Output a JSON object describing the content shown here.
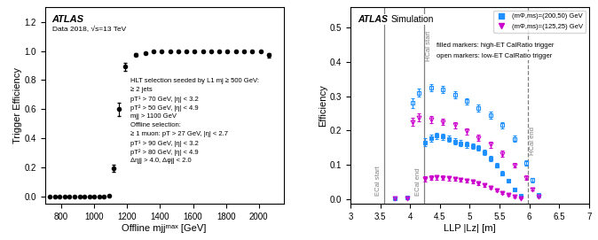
{
  "chart_data": [
    {
      "type": "scatter",
      "xlabel": "Offline mjjᵐᵃˣ [GeV]",
      "ylabel": "Trigger Efficiency",
      "xlim": [
        700,
        2150
      ],
      "ylim": [
        -0.05,
        1.3
      ],
      "xticks": [
        800,
        1000,
        1200,
        1400,
        1600,
        1800,
        2000
      ],
      "yticks": [
        0.0,
        0.2,
        0.4,
        0.6,
        0.8,
        1.0,
        1.2
      ],
      "marker": "circle",
      "x": [
        730,
        760,
        790,
        820,
        850,
        880,
        910,
        940,
        970,
        1000,
        1030,
        1060,
        1090,
        1120,
        1150,
        1185,
        1250,
        1310,
        1360,
        1410,
        1460,
        1510,
        1560,
        1610,
        1660,
        1710,
        1760,
        1810,
        1860,
        1910,
        1960,
        2010,
        2060
      ],
      "values": [
        0.0,
        0.0,
        0.0,
        0.001,
        0.001,
        0.001,
        0.001,
        0.002,
        0.002,
        0.003,
        0.003,
        0.003,
        0.004,
        0.197,
        0.6,
        0.892,
        0.975,
        0.985,
        1.0,
        1.0,
        1.0,
        1.0,
        1.0,
        1.0,
        1.0,
        1.0,
        1.0,
        0.998,
        1.0,
        1.0,
        0.998,
        1.0,
        0.975
      ],
      "y_err_low": [
        0.0,
        0.0,
        0.0,
        0.0,
        0.0,
        0.0,
        0.0,
        0.0,
        0.0,
        0.0,
        0.0,
        0.0,
        0.0,
        0.025,
        0.045,
        0.028,
        0.01,
        0.008,
        0.005,
        0.005,
        0.005,
        0.005,
        0.005,
        0.005,
        0.005,
        0.005,
        0.005,
        0.005,
        0.005,
        0.005,
        0.005,
        0.005,
        0.018
      ],
      "y_err_high": [
        0.0,
        0.0,
        0.0,
        0.0,
        0.0,
        0.0,
        0.0,
        0.0,
        0.0,
        0.0,
        0.0,
        0.0,
        0.0,
        0.025,
        0.045,
        0.028,
        0.01,
        0.008,
        0.005,
        0.005,
        0.005,
        0.005,
        0.005,
        0.005,
        0.005,
        0.005,
        0.005,
        0.005,
        0.005,
        0.005,
        0.005,
        0.005,
        0.012
      ],
      "annotations": [
        [
          "ATLAS",
          "Data 2018, √s=13 TeV"
        ],
        [
          "HLT selection seeded by L1 mj ≥ 500 GeV:",
          "≥ 2 jets",
          "pT¹ > 70 GeV, |η| < 3.2",
          "pT² > 50 GeV, |η| < 4.9",
          "mjj > 1100 GeV",
          "Offline selection:",
          "≥ 1 muon: pT > 27 GeV, |η| < 2.7",
          "pT¹ > 90 GeV, |η| < 3.2",
          "pT² > 80 GeV, |η| < 4.9",
          "Δηjj > 4.0, Δφjj < 2.0"
        ]
      ]
    },
    {
      "type": "scatter",
      "xlabel": "LLP |Lz| [m]",
      "ylabel": "Efficiency",
      "xlim": [
        3.0,
        7.0
      ],
      "ylim": [
        -0.015,
        0.56
      ],
      "xticks": [
        3,
        3.5,
        4,
        4.5,
        5,
        5.5,
        6,
        6.5,
        7
      ],
      "yticks": [
        0.0,
        0.1,
        0.2,
        0.3,
        0.4,
        0.5
      ],
      "legend": "upper right",
      "series": [
        {
          "name": "(mΦ,ms)=(200,50) GeV",
          "color": "#1E90FF",
          "marker": "square",
          "x": [
            4.25,
            4.35,
            4.45,
            4.55,
            4.65,
            4.75,
            4.85,
            4.95,
            5.05,
            5.15,
            5.25,
            5.35,
            5.45,
            5.55,
            5.65,
            5.75,
            5.85
          ],
          "values": [
            0.165,
            0.178,
            0.185,
            0.182,
            0.175,
            0.168,
            0.162,
            0.158,
            0.155,
            0.148,
            0.135,
            0.118,
            0.098,
            0.075,
            0.052,
            0.028,
            0.01
          ],
          "errors": [
            0.012,
            0.01,
            0.009,
            0.009,
            0.009,
            0.009,
            0.009,
            0.009,
            0.008,
            0.008,
            0.008,
            0.007,
            0.007,
            0.006,
            0.005,
            0.004,
            0.003
          ]
        },
        {
          "color": "#1E90FF",
          "marker": "open square",
          "x": [
            3.75,
            3.95,
            4.05,
            4.15,
            4.35,
            4.55,
            4.75,
            4.95,
            5.15,
            5.35,
            5.55,
            5.75,
            5.95,
            6.05,
            6.15
          ],
          "values": [
            0.002,
            0.005,
            0.28,
            0.31,
            0.325,
            0.32,
            0.305,
            0.285,
            0.265,
            0.245,
            0.215,
            0.175,
            0.105,
            0.055,
            0.012
          ],
          "errors": [
            0.001,
            0.002,
            0.015,
            0.012,
            0.01,
            0.01,
            0.01,
            0.01,
            0.01,
            0.01,
            0.01,
            0.009,
            0.008,
            0.006,
            0.003
          ]
        },
        {
          "name": "(mΦ,ms)=(125,25) GeV",
          "color": "#CC00CC",
          "marker": "triangle_down",
          "x": [
            4.25,
            4.35,
            4.45,
            4.55,
            4.65,
            4.75,
            4.85,
            4.95,
            5.05,
            5.15,
            5.25,
            5.35,
            5.45,
            5.55,
            5.65,
            5.75,
            5.85
          ],
          "values": [
            0.058,
            0.062,
            0.063,
            0.062,
            0.06,
            0.058,
            0.056,
            0.053,
            0.05,
            0.046,
            0.04,
            0.033,
            0.026,
            0.018,
            0.012,
            0.006,
            0.002
          ],
          "errors": [
            0.007,
            0.006,
            0.006,
            0.006,
            0.006,
            0.006,
            0.005,
            0.005,
            0.005,
            0.005,
            0.004,
            0.004,
            0.004,
            0.003,
            0.003,
            0.002,
            0.001
          ]
        },
        {
          "color": "#CC00CC",
          "marker": "open triangle_down",
          "x": [
            3.75,
            3.95,
            4.05,
            4.15,
            4.35,
            4.55,
            4.75,
            4.95,
            5.15,
            5.35,
            5.55,
            5.75,
            5.95,
            6.05,
            6.15
          ],
          "values": [
            0.001,
            0.002,
            0.225,
            0.238,
            0.232,
            0.225,
            0.215,
            0.198,
            0.178,
            0.158,
            0.132,
            0.098,
            0.062,
            0.028,
            0.006
          ],
          "errors": [
            0.001,
            0.001,
            0.012,
            0.011,
            0.01,
            0.01,
            0.009,
            0.009,
            0.009,
            0.008,
            0.008,
            0.007,
            0.006,
            0.004,
            0.002
          ]
        }
      ],
      "vlines": [
        {
          "x": 3.56,
          "line_style": "solid",
          "labels": [
            "ECal start"
          ]
        },
        {
          "x": 4.23,
          "line_style": "solid",
          "labels": [
            "ECal end",
            "HCal start"
          ]
        },
        {
          "x": 5.97,
          "line_style": "dashed",
          "labels": [
            "HCal end"
          ]
        }
      ],
      "annotations": [
        [
          "ATLAS",
          "Simulation"
        ],
        [
          "filled markers: high-ET CalRatio trigger",
          "open markers: low-ET CalRatio trigger"
        ]
      ]
    }
  ]
}
